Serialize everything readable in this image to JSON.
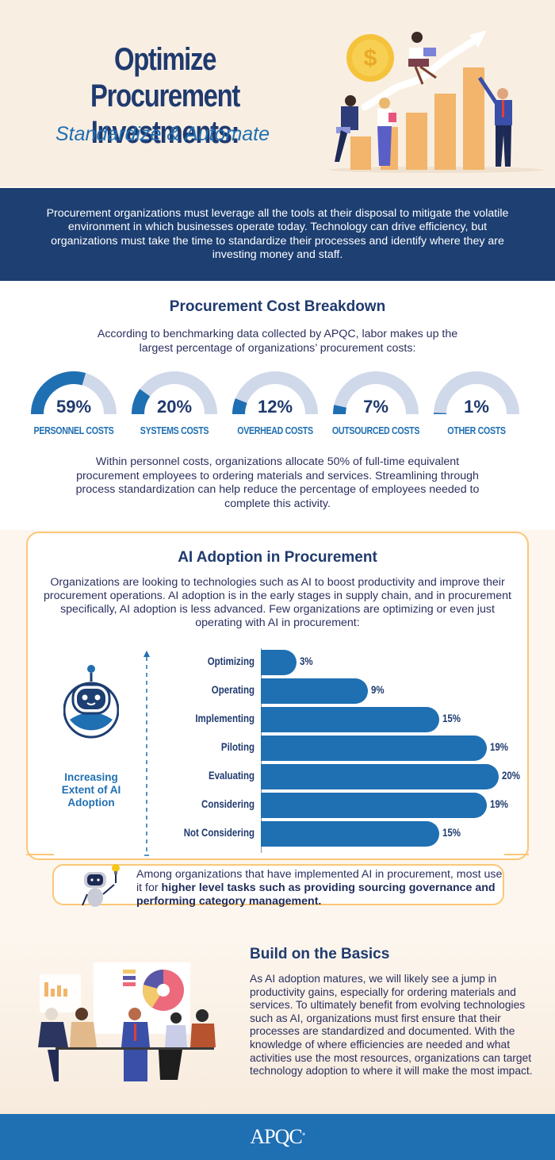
{
  "hero": {
    "title_line1": "Optimize Procurement",
    "title_line2": "Investments:",
    "subtitle": "Standardize & Automate",
    "illustration": "business-growth-chart-icon"
  },
  "intro": {
    "text": "Procurement organizations must leverage all the tools at their disposal to mitigate the volatile environment in which businesses operate today. Technology can drive efficiency, but organizations must take the time to standardize their processes and identify where they are investing money and staff."
  },
  "cost_breakdown": {
    "title": "Procurement Cost Breakdown",
    "lead": "According to benchmarking data collected by APQC, labor makes up the largest percentage of organizations’ procurement costs:",
    "gauges": [
      {
        "value": "59%",
        "percent": 59,
        "label": "PERSONNEL COSTS"
      },
      {
        "value": "20%",
        "percent": 20,
        "label": "SYSTEMS COSTS"
      },
      {
        "value": "12%",
        "percent": 12,
        "label": "OVERHEAD COSTS"
      },
      {
        "value": "7%",
        "percent": 7,
        "label": "OUTSOURCED COSTS"
      },
      {
        "value": "1%",
        "percent": 1,
        "label": "OTHER COSTS"
      }
    ],
    "after": "Within personnel costs, organizations allocate 50% of full-time equivalent procurement employees to ordering materials and services. Streamlining through process standardization can help reduce the percentage of employees needed to complete this activity.",
    "colors": {
      "fill": "#1f6fb3",
      "track": "#d0d9ea"
    }
  },
  "ai_adoption": {
    "title": "AI Adoption in Procurement",
    "lead": "Organizations are looking to technologies such as AI to boost productivity and improve their procurement operations. AI adoption is in the early stages in supply chain, and in procurement specifically, AI adoption is less advanced. Few organizations are optimizing or even just operating with AI in procurement:",
    "axis_caption": "Increasing Extent of AI Adoption",
    "callout_plain": "Among organizations that have implemented AI in procurement, most use it for ",
    "callout_bold": "higher level tasks such as providing sourcing governance and performing category management."
  },
  "chart_data": {
    "type": "bar",
    "orientation": "horizontal",
    "title": "AI Adoption in Procurement",
    "ylabel": "Increasing Extent of AI Adoption",
    "xlabel": "",
    "categories": [
      "Optimizing",
      "Operating",
      "Implementing",
      "Piloting",
      "Evaluating",
      "Considering",
      "Not Considering"
    ],
    "values": [
      3,
      9,
      15,
      19,
      20,
      19,
      15
    ],
    "value_labels": [
      "3%",
      "9%",
      "15%",
      "19%",
      "20%",
      "19%",
      "15%"
    ],
    "unit": "%",
    "xlim": [
      0,
      20
    ],
    "grid": false,
    "legend": "none",
    "bar_color": "#1f6fb3"
  },
  "basics": {
    "title": "Build on the Basics",
    "body": "As AI adoption matures, we will likely see a jump in productivity gains, especially for ordering materials and services. To ultimately benefit from evolving technologies such as AI, organizations must first ensure that their processes are standardized and documented. With the knowledge of where efficiencies are needed and what activities use the most resources, organizations can target technology adoption to where it will make the most impact.",
    "illustration": "team-meeting-icon"
  },
  "footer": {
    "logo": "APQC"
  }
}
